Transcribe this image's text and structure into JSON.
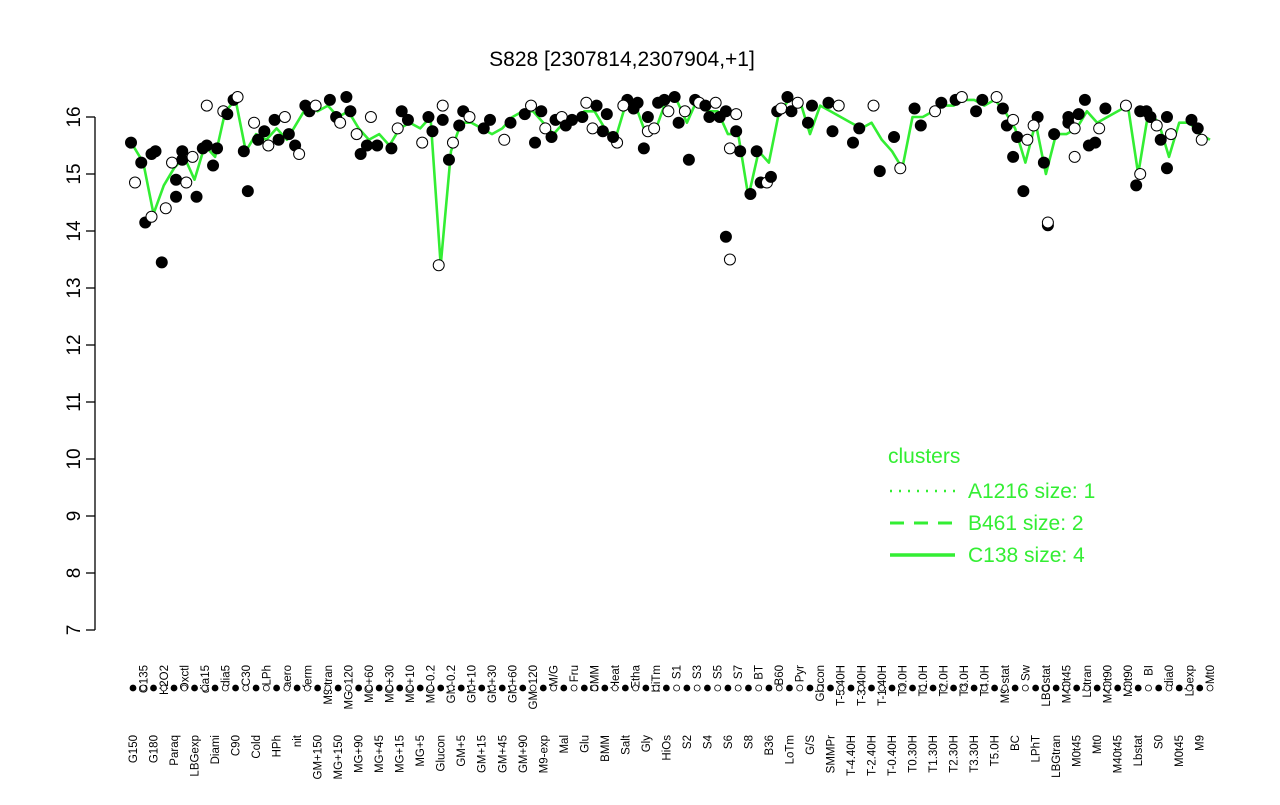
{
  "chart_data": {
    "type": "line",
    "title": "S828 [2307814,2307904,+1]",
    "xlabel": "",
    "ylabel": "",
    "ylim": [
      7,
      16.5
    ],
    "yticks": [
      7,
      8,
      9,
      10,
      11,
      12,
      13,
      14,
      15,
      16
    ],
    "grid": false,
    "legend": {
      "title": "clusters",
      "placement": "right",
      "entries": [
        {
          "label": "A1216 size: 1",
          "style": "dotted"
        },
        {
          "label": "B461 size: 2",
          "style": "dashed"
        },
        {
          "label": "C138 size: 4",
          "style": "solid"
        }
      ]
    },
    "x_labels": [
      "G150",
      "G135",
      "G180",
      "H2O2",
      "Paraq",
      "Oxctl",
      "LBGexp",
      "dia15",
      "Diami",
      "dia5",
      "C90",
      "C30",
      "Cold",
      "LPh",
      "HPh",
      "aero",
      "nit",
      "ferm",
      "GM+150",
      "M9-tran",
      "MG+150",
      "MG+120",
      "MG+90",
      "MG+60",
      "MG+45",
      "MG+30",
      "MG+15",
      "MG+10",
      "MG+5",
      "MG-0.2",
      "Glucon",
      "GM-0.2",
      "GM+5",
      "GM+10",
      "GM+15",
      "GM+30",
      "GM+45",
      "GM+60",
      "GM+90",
      "GM+120",
      "M9-exp",
      "M/G",
      "Mal",
      "Fru",
      "Glu",
      "SMM",
      "BMM",
      "Heat",
      "Salt",
      "Etha",
      "Gly",
      "HiTm",
      "HiOs",
      "S1",
      "S2",
      "S3",
      "S4",
      "S5",
      "S6",
      "S7",
      "S8",
      "BT",
      "B36",
      "B60",
      "LoTm",
      "Pyr",
      "G/S",
      "Glucon",
      "SMMPr",
      "T-5.40H",
      "T-4.40H",
      "T-3.40H",
      "T-2.40H",
      "T-1.40H",
      "T-0.40H",
      "T0.0H",
      "T0.30H",
      "T1.0H",
      "T1.30H",
      "T2.0H",
      "T2.30H",
      "T3.0H",
      "T3.30H",
      "T4.0H",
      "T5.0H",
      "M9-stat",
      "BC",
      "Sw",
      "LPhT",
      "LBGstat",
      "LBGtran",
      "M40t45",
      "M0t45",
      "Lbtran",
      "Mt0",
      "M40t90",
      "M40t45",
      "M0t90",
      "Lbstat",
      "BI",
      "S0",
      "dia0",
      "M0t45",
      "Lbexp",
      "M9",
      "Mt0"
    ],
    "series": [
      {
        "values": [
          15.5,
          15.2,
          14.3,
          14.8,
          15.1,
          15.3,
          14.9,
          15.5,
          15.3,
          16.1,
          16.3,
          15.4,
          15.7,
          15.6,
          15.8,
          15.6,
          15.9,
          16.2,
          16.1,
          16.2,
          16.0,
          16.1,
          15.8,
          15.6,
          15.7,
          15.5,
          15.8,
          15.9,
          15.8,
          16.0,
          13.4,
          15.4,
          15.9,
          15.9,
          15.8,
          15.7,
          15.8,
          16.0,
          16.1,
          16.1,
          15.9,
          15.7,
          15.9,
          15.9,
          16.1,
          16.1,
          15.8,
          15.6,
          16.2,
          16.2,
          15.7,
          15.8,
          16.3,
          16.3,
          15.9,
          16.3,
          16.1,
          16.1,
          15.7,
          15.7,
          14.6,
          15.4,
          15.2,
          16.1,
          16.3,
          16.3,
          15.7,
          16.2,
          16.1,
          16.0,
          15.9,
          15.8,
          15.9,
          15.6,
          15.4,
          15.1,
          16.0,
          16.0,
          16.1,
          16.2,
          16.2,
          16.3,
          16.3,
          16.2,
          16.3,
          16.1,
          15.8,
          15.2,
          15.9,
          15.0,
          15.7,
          15.7,
          15.8,
          16.1,
          15.9,
          16.0,
          16.1,
          16.2,
          15.0,
          16.1,
          15.9,
          15.3,
          15.9,
          15.9,
          15.7,
          15.6
        ]
      }
    ],
    "points": [
      {
        "x": "G150",
        "y": 15.55
      },
      {
        "x": "G150",
        "y": 14.85
      },
      {
        "x": "G135",
        "y": 15.2
      },
      {
        "x": "G135",
        "y": 14.15
      },
      {
        "x": "G180",
        "y": 14.25
      },
      {
        "x": "G180",
        "y": 15.4
      },
      {
        "x": "G180",
        "y": 15.35
      },
      {
        "x": "H2O2",
        "y": 14.4
      },
      {
        "x": "H2O2",
        "y": 13.45
      },
      {
        "x": "Paraq",
        "y": 14.9
      },
      {
        "x": "Paraq",
        "y": 15.2
      },
      {
        "x": "Paraq",
        "y": 14.6
      },
      {
        "x": "Oxctl",
        "y": 15.4
      },
      {
        "x": "Oxctl",
        "y": 14.85
      },
      {
        "x": "Oxctl",
        "y": 15.25
      },
      {
        "x": "LBGexp",
        "y": 14.6
      },
      {
        "x": "LBGexp",
        "y": 15.3
      },
      {
        "x": "dia15",
        "y": 15.5
      },
      {
        "x": "dia15",
        "y": 15.45
      },
      {
        "x": "dia15",
        "y": 16.2
      },
      {
        "x": "Diami",
        "y": 15.15
      },
      {
        "x": "Diami",
        "y": 15.45
      },
      {
        "x": "dia5",
        "y": 16.1
      },
      {
        "x": "dia5",
        "y": 16.05
      },
      {
        "x": "C90",
        "y": 16.3
      },
      {
        "x": "C90",
        "y": 16.35
      },
      {
        "x": "C30",
        "y": 15.4
      },
      {
        "x": "C30",
        "y": 14.7
      },
      {
        "x": "Cold",
        "y": 15.9
      },
      {
        "x": "Cold",
        "y": 15.6
      },
      {
        "x": "LPh",
        "y": 15.75
      },
      {
        "x": "LPh",
        "y": 15.5
      },
      {
        "x": "HPh",
        "y": 15.95
      },
      {
        "x": "HPh",
        "y": 15.6
      },
      {
        "x": "aero",
        "y": 16.0
      },
      {
        "x": "aero",
        "y": 15.7
      },
      {
        "x": "nit",
        "y": 15.5
      },
      {
        "x": "nit",
        "y": 15.35
      },
      {
        "x": "ferm",
        "y": 16.2
      },
      {
        "x": "ferm",
        "y": 16.1
      },
      {
        "x": "GM+150",
        "y": 16.2
      },
      {
        "x": "M9-tran",
        "y": 16.3
      },
      {
        "x": "MG+150",
        "y": 16.0
      },
      {
        "x": "MG+150",
        "y": 15.9
      },
      {
        "x": "MG+120",
        "y": 16.35
      },
      {
        "x": "MG+120",
        "y": 16.1
      },
      {
        "x": "MG+90",
        "y": 15.7
      },
      {
        "x": "MG+90",
        "y": 15.35
      },
      {
        "x": "MG+60",
        "y": 15.5
      },
      {
        "x": "MG+60",
        "y": 16.0
      },
      {
        "x": "MG+45",
        "y": 15.5
      },
      {
        "x": "MG+30",
        "y": 15.45
      },
      {
        "x": "MG+15",
        "y": 15.8
      },
      {
        "x": "MG+15",
        "y": 16.1
      },
      {
        "x": "MG+10",
        "y": 15.95
      },
      {
        "x": "MG+5",
        "y": 15.55
      },
      {
        "x": "MG-0.2",
        "y": 16.0
      },
      {
        "x": "MG-0.2",
        "y": 15.75
      },
      {
        "x": "Glucon",
        "y": 13.4
      },
      {
        "x": "Glucon",
        "y": 15.95
      },
      {
        "x": "GM-0.2",
        "y": 15.25
      },
      {
        "x": "GM-0.2",
        "y": 15.55
      },
      {
        "x": "GM+5",
        "y": 15.85
      },
      {
        "x": "GM+5",
        "y": 16.1
      },
      {
        "x": "GM+10",
        "y": 16.0
      },
      {
        "x": "GM+15",
        "y": 15.8
      },
      {
        "x": "GM+30",
        "y": 15.95
      },
      {
        "x": "GM+45",
        "y": 15.6
      },
      {
        "x": "GM+60",
        "y": 15.9
      },
      {
        "x": "GM+90",
        "y": 16.05
      },
      {
        "x": "GM+120",
        "y": 16.2
      },
      {
        "x": "GM+120",
        "y": 15.55
      },
      {
        "x": "M9-exp",
        "y": 16.1
      },
      {
        "x": "M9-exp",
        "y": 15.8
      },
      {
        "x": "M/G",
        "y": 15.65
      },
      {
        "x": "M/G",
        "y": 15.95
      },
      {
        "x": "Mal",
        "y": 16.0
      },
      {
        "x": "Mal",
        "y": 15.85
      },
      {
        "x": "Fru",
        "y": 15.95
      },
      {
        "x": "Glu",
        "y": 16.25
      },
      {
        "x": "Glu",
        "y": 16.0
      },
      {
        "x": "SMM",
        "y": 16.2
      },
      {
        "x": "SMM",
        "y": 15.8
      },
      {
        "x": "BMM",
        "y": 16.05
      },
      {
        "x": "BMM",
        "y": 15.75
      },
      {
        "x": "Heat",
        "y": 15.55
      },
      {
        "x": "Heat",
        "y": 15.65
      },
      {
        "x": "Salt",
        "y": 16.3
      },
      {
        "x": "Salt",
        "y": 16.2
      },
      {
        "x": "Etha",
        "y": 16.25
      },
      {
        "x": "Etha",
        "y": 16.15
      },
      {
        "x": "Gly",
        "y": 15.75
      },
      {
        "x": "Gly",
        "y": 15.45
      },
      {
        "x": "Gly",
        "y": 16.0
      },
      {
        "x": "HiTm",
        "y": 15.8
      },
      {
        "x": "HiTm",
        "y": 16.25
      },
      {
        "x": "HiOs",
        "y": 16.3
      },
      {
        "x": "HiOs",
        "y": 16.1
      },
      {
        "x": "S1",
        "y": 16.35
      },
      {
        "x": "S1",
        "y": 15.9
      },
      {
        "x": "S2",
        "y": 16.1
      },
      {
        "x": "S2",
        "y": 15.25
      },
      {
        "x": "S3",
        "y": 16.3
      },
      {
        "x": "S3",
        "y": 16.25
      },
      {
        "x": "S4",
        "y": 16.2
      },
      {
        "x": "S4",
        "y": 16.0
      },
      {
        "x": "S5",
        "y": 16.25
      },
      {
        "x": "S5",
        "y": 16.0
      },
      {
        "x": "S6",
        "y": 16.1
      },
      {
        "x": "S6",
        "y": 15.45
      },
      {
        "x": "S7",
        "y": 15.75
      },
      {
        "x": "S7",
        "y": 15.4
      },
      {
        "x": "S7",
        "y": 16.05
      },
      {
        "x": "S8",
        "y": 14.65
      },
      {
        "x": "S6",
        "y": 13.9
      },
      {
        "x": "S6",
        "y": 13.5
      },
      {
        "x": "BT",
        "y": 15.4
      },
      {
        "x": "BT",
        "y": 14.85
      },
      {
        "x": "B36",
        "y": 14.85
      },
      {
        "x": "B36",
        "y": 14.95
      },
      {
        "x": "B60",
        "y": 16.1
      },
      {
        "x": "B60",
        "y": 16.15
      },
      {
        "x": "LoTm",
        "y": 16.35
      },
      {
        "x": "LoTm",
        "y": 16.1
      },
      {
        "x": "Pyr",
        "y": 16.25
      },
      {
        "x": "G/S",
        "y": 16.2
      },
      {
        "x": "G/S",
        "y": 15.9
      },
      {
        "x": "Glucon",
        "y": 16.2
      },
      {
        "x": "SMMPr",
        "y": 16.25
      },
      {
        "x": "SMMPr",
        "y": 15.75
      },
      {
        "x": "T-5.40H",
        "y": 16.2
      },
      {
        "x": "T-4.40H",
        "y": 15.55
      },
      {
        "x": "T-3.40H",
        "y": 15.8
      },
      {
        "x": "T-2.40H",
        "y": 16.2
      },
      {
        "x": "T-1.40H",
        "y": 15.05
      },
      {
        "x": "T-0.40H",
        "y": 15.65
      },
      {
        "x": "T0.0H",
        "y": 15.1
      },
      {
        "x": "T0.30H",
        "y": 16.15
      },
      {
        "x": "T1.0H",
        "y": 15.85
      },
      {
        "x": "T1.30H",
        "y": 16.1
      },
      {
        "x": "T2.0H",
        "y": 16.25
      },
      {
        "x": "T2.30H",
        "y": 16.3
      },
      {
        "x": "T3.0H",
        "y": 16.35
      },
      {
        "x": "T3.30H",
        "y": 16.1
      },
      {
        "x": "T4.0H",
        "y": 16.3
      },
      {
        "x": "T5.0H",
        "y": 16.35
      },
      {
        "x": "M9-stat",
        "y": 16.15
      },
      {
        "x": "M9-stat",
        "y": 15.85
      },
      {
        "x": "BC",
        "y": 15.95
      },
      {
        "x": "BC",
        "y": 15.65
      },
      {
        "x": "BC",
        "y": 15.3
      },
      {
        "x": "Sw",
        "y": 15.6
      },
      {
        "x": "Sw",
        "y": 14.7
      },
      {
        "x": "LPhT",
        "y": 16.0
      },
      {
        "x": "LPhT",
        "y": 15.85
      },
      {
        "x": "LBGstat",
        "y": 14.1
      },
      {
        "x": "LBGstat",
        "y": 15.2
      },
      {
        "x": "LBGstat",
        "y": 14.15
      },
      {
        "x": "LBGtran",
        "y": 15.7
      },
      {
        "x": "M40t45",
        "y": 15.9
      },
      {
        "x": "M0t45",
        "y": 15.8
      },
      {
        "x": "Lbtran",
        "y": 15.5
      },
      {
        "x": "Lbtran",
        "y": 16.3
      },
      {
        "x": "Mt0",
        "y": 15.8
      },
      {
        "x": "M40t90",
        "y": 16.15
      },
      {
        "x": "M40t45",
        "y": 16.0
      },
      {
        "x": "M0t90",
        "y": 16.2
      },
      {
        "x": "Lbstat",
        "y": 16.1
      },
      {
        "x": "Lbstat",
        "y": 14.8
      },
      {
        "x": "Lbstat",
        "y": 15.0
      },
      {
        "x": "BI",
        "y": 16.1
      },
      {
        "x": "BI",
        "y": 16.0
      },
      {
        "x": "S0",
        "y": 15.85
      },
      {
        "x": "S0",
        "y": 15.6
      },
      {
        "x": "dia0",
        "y": 16.0
      },
      {
        "x": "dia0",
        "y": 15.7
      },
      {
        "x": "dia0",
        "y": 15.1
      },
      {
        "x": "M0t45",
        "y": 16.05
      },
      {
        "x": "M0t45",
        "y": 15.3
      },
      {
        "x": "Lbexp",
        "y": 15.95
      },
      {
        "x": "M9",
        "y": 15.8
      },
      {
        "x": "M9",
        "y": 15.6
      },
      {
        "x": "Mt0",
        "y": 15.55
      }
    ],
    "colors": {
      "line": "#33ee33",
      "point_stroke": "#000000",
      "filled_point": "#000000",
      "open_point": "#ffffff",
      "legend_text": "#33ee33",
      "axis": "#000000"
    }
  }
}
